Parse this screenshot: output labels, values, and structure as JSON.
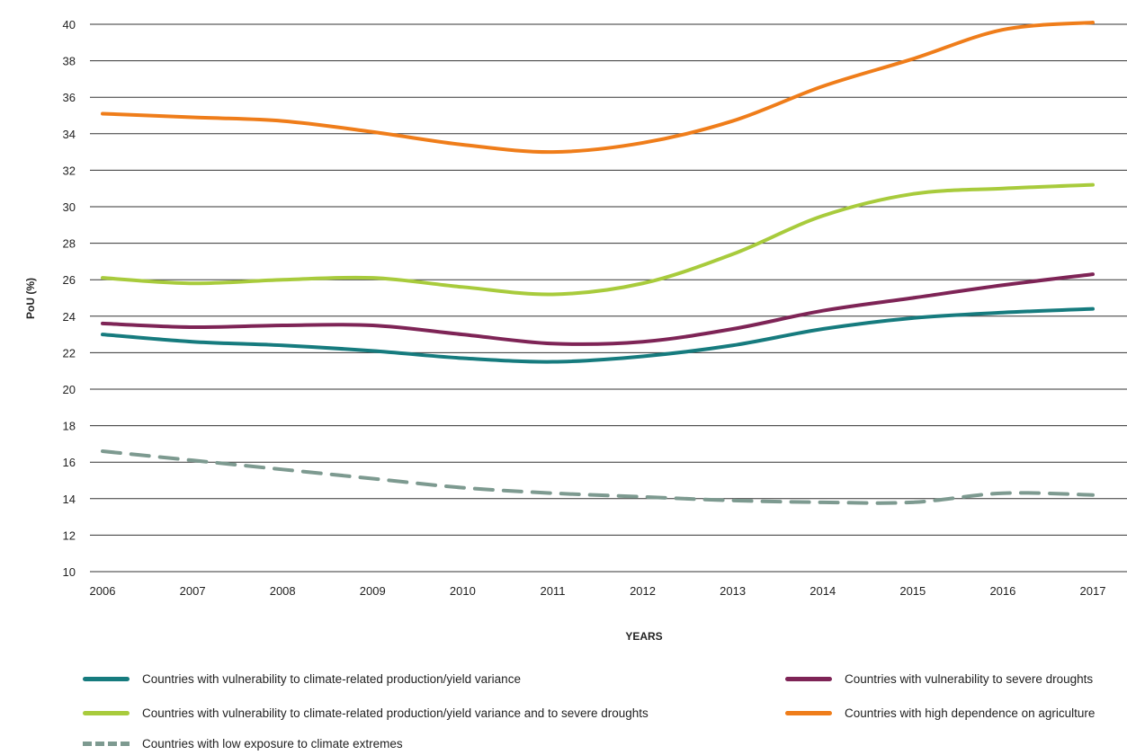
{
  "chart_data": {
    "type": "line",
    "xlabel": "YEARS",
    "ylabel": "PoU (%)",
    "x": [
      "2006",
      "2007",
      "2008",
      "2009",
      "2010",
      "2011",
      "2012",
      "2013",
      "2014",
      "2015",
      "2016",
      "2017"
    ],
    "ylim": [
      10,
      40
    ],
    "yticks": [
      10,
      12,
      14,
      16,
      18,
      20,
      22,
      24,
      26,
      28,
      30,
      32,
      34,
      36,
      38,
      40
    ],
    "grid": true,
    "legend_position": "bottom",
    "series": [
      {
        "name": "Countries with vulnerability to climate-related production/yield variance",
        "color": "#167b7e",
        "dashed": false,
        "values": [
          23.0,
          22.6,
          22.4,
          22.1,
          21.7,
          21.5,
          21.8,
          22.4,
          23.3,
          23.9,
          24.2,
          24.4
        ]
      },
      {
        "name": "Countries with vulnerability to climate-related production/yield variance and to severe droughts",
        "color": "#a8cb3c",
        "dashed": false,
        "values": [
          26.1,
          25.8,
          26.0,
          26.1,
          25.6,
          25.2,
          25.8,
          27.4,
          29.5,
          30.7,
          31.0,
          31.2
        ]
      },
      {
        "name": "Countries with low exposure to climate extremes",
        "color": "#7d9a90",
        "dashed": true,
        "values": [
          16.6,
          16.1,
          15.6,
          15.1,
          14.6,
          14.3,
          14.1,
          13.9,
          13.8,
          13.8,
          14.3,
          14.2
        ]
      },
      {
        "name": "Countries with vulnerability to severe droughts",
        "color": "#7e2456",
        "dashed": false,
        "values": [
          23.6,
          23.4,
          23.5,
          23.5,
          23.0,
          22.5,
          22.6,
          23.3,
          24.3,
          25.0,
          25.7,
          26.3
        ]
      },
      {
        "name": "Countries with high dependence on agriculture",
        "color": "#ef7d1a",
        "dashed": false,
        "values": [
          35.1,
          34.9,
          34.7,
          34.1,
          33.4,
          33.0,
          33.5,
          34.7,
          36.6,
          38.1,
          39.7,
          40.1
        ]
      }
    ]
  }
}
